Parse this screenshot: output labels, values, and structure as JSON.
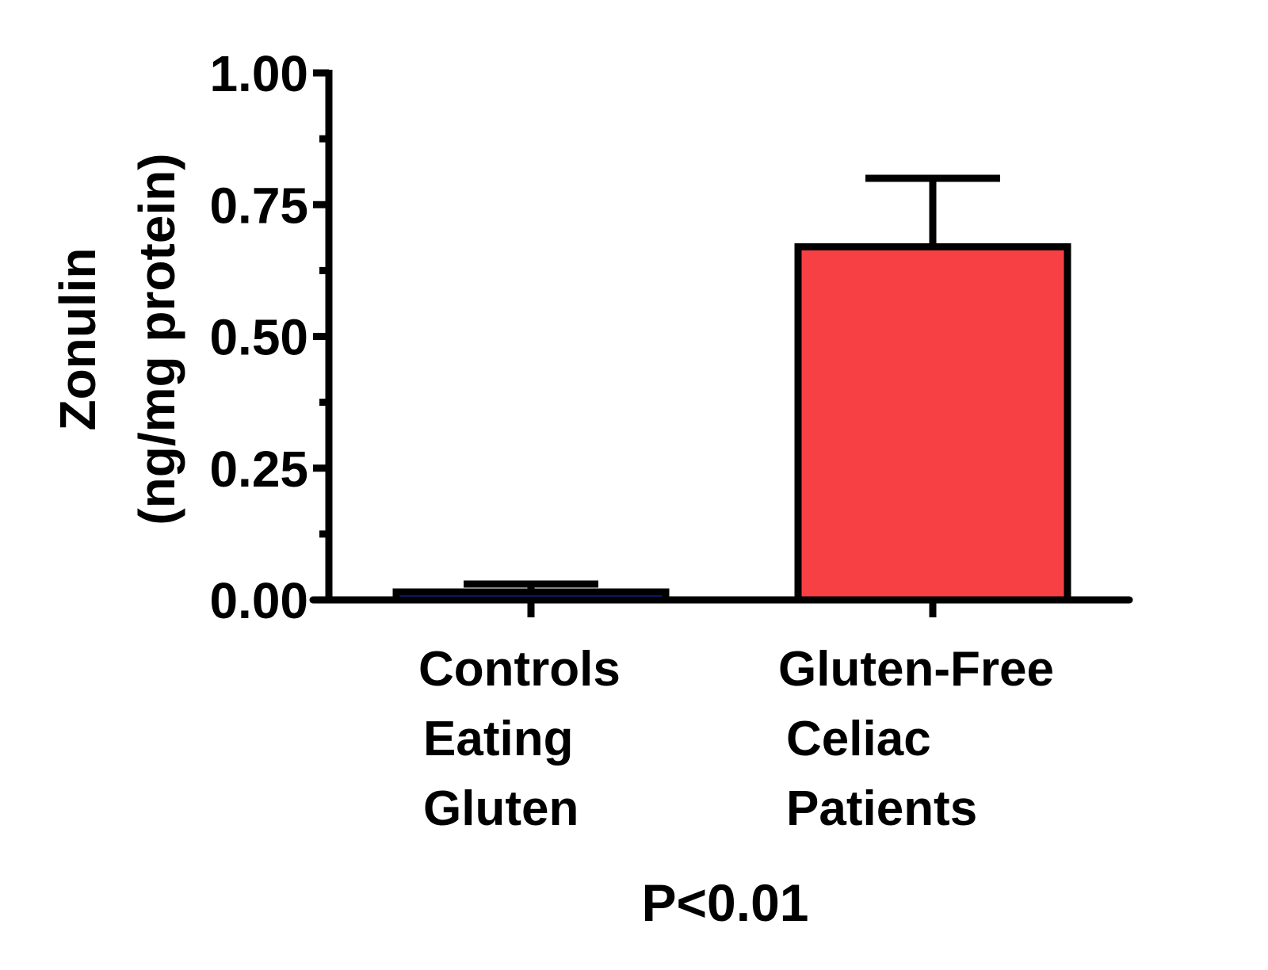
{
  "chart_data": {
    "type": "bar",
    "title": "",
    "ylabel": [
      "Zonulin",
      "(ng/mg protein)"
    ],
    "xlabel": "",
    "ylim": [
      0,
      1.0
    ],
    "yticks": [
      "0.00",
      "0.25",
      "0.50",
      "0.75",
      "1.00"
    ],
    "categories": [
      {
        "lines": [
          "Controls",
          "Eating",
          "Gluten"
        ]
      },
      {
        "lines": [
          "Gluten-Free",
          "Celiac",
          "Patients"
        ]
      }
    ],
    "values": [
      0.015,
      0.67
    ],
    "error_upper": [
      0.03,
      0.8
    ],
    "bar_colors": [
      "#1a2adf",
      "#f74043"
    ],
    "annotation": "P<0.01",
    "grid": false
  }
}
